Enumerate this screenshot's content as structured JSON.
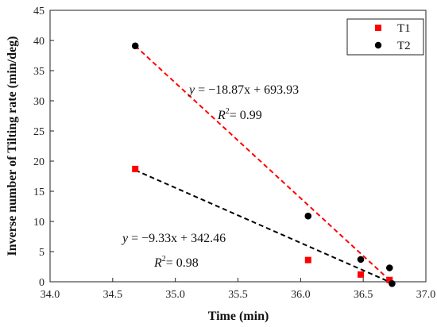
{
  "chart_data": {
    "type": "scatter",
    "xlabel": "Time (min)",
    "ylabel": "Inverse number of Tilting rate (min/deg)",
    "xlim": [
      34.0,
      37.0
    ],
    "ylim": [
      0,
      45
    ],
    "xticks": [
      "34.0",
      "34.5",
      "35.0",
      "35.5",
      "36.0",
      "36.5",
      "37.0"
    ],
    "yticks": [
      "0",
      "5",
      "10",
      "15",
      "20",
      "25",
      "30",
      "35",
      "40",
      "45"
    ],
    "legend": "top-right",
    "grid": false,
    "series": [
      {
        "name": "T1",
        "marker": "square",
        "color": "#ff0000",
        "x": [
          34.68,
          36.06,
          36.48,
          36.71
        ],
        "y": [
          18.7,
          3.6,
          1.2,
          0.3
        ]
      },
      {
        "name": "T2",
        "marker": "circle",
        "color": "#000000",
        "x": [
          34.68,
          36.06,
          36.48,
          36.71,
          36.73
        ],
        "y": [
          39.1,
          10.9,
          3.7,
          2.3,
          -0.3
        ]
      }
    ],
    "fits": [
      {
        "series": "T2",
        "color": "#ff0000",
        "x": [
          34.68,
          36.74
        ],
        "y": [
          39.1,
          -0.3
        ],
        "equation_lhs": "y",
        "equation_rhs": "= −18.87x + 693.93",
        "r2_label": "R",
        "r2_sup": "2",
        "r2_value": "= 0.99"
      },
      {
        "series": "T1",
        "color": "#000000",
        "x": [
          34.68,
          36.74
        ],
        "y": [
          18.5,
          -0.3
        ],
        "equation_lhs": "y",
        "equation_rhs": "= −9.33x + 342.46",
        "r2_label": "R",
        "r2_sup": "2",
        "r2_value": "= 0.98"
      }
    ]
  }
}
